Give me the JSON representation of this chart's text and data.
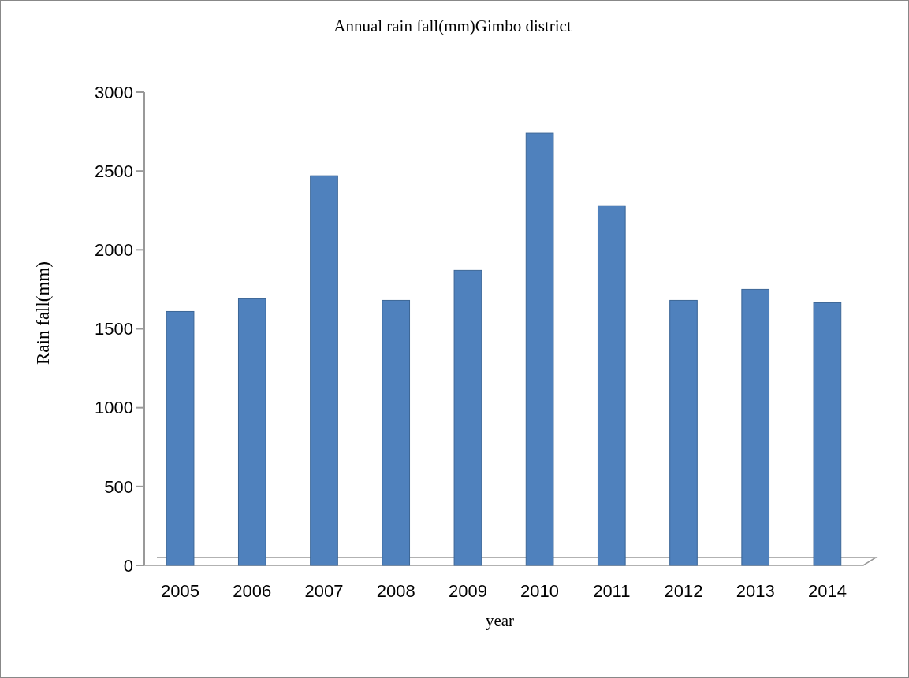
{
  "chart_data": {
    "type": "bar",
    "title": "Annual rain fall(mm)Gimbo district",
    "xlabel": "year",
    "ylabel": "Rain fall(mm)",
    "categories": [
      "2005",
      "2006",
      "2007",
      "2008",
      "2009",
      "2010",
      "2011",
      "2012",
      "2013",
      "2014"
    ],
    "values": [
      1610,
      1690,
      2470,
      1680,
      1870,
      2740,
      2280,
      1680,
      1750,
      1665
    ],
    "color": "#4f81bd",
    "ylim": [
      0,
      3000
    ],
    "yticks": [
      0,
      500,
      1000,
      1500,
      2000,
      2500,
      3000
    ],
    "grid": false
  }
}
